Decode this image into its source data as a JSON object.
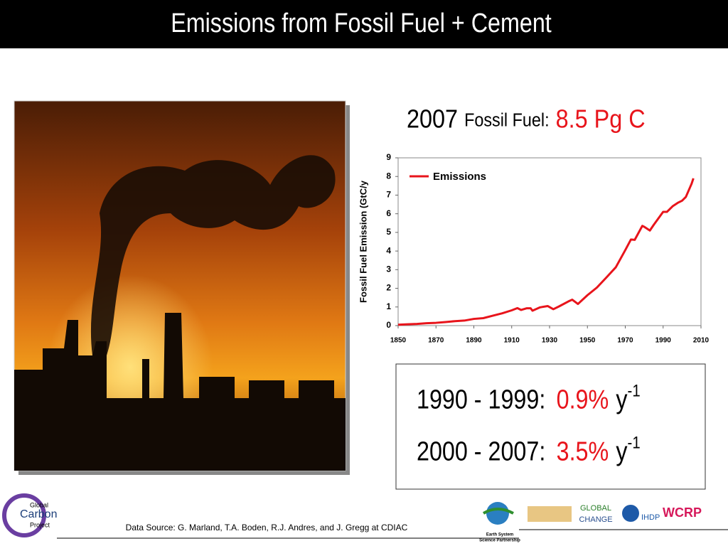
{
  "header": {
    "title": "Emissions from Fossil Fuel + Cement"
  },
  "headline": {
    "year": "2007",
    "label": "Fossil Fuel:",
    "value": "8.5 Pg C"
  },
  "chart_data": {
    "type": "line",
    "y_label": "Fossil Fuel Emission (GtC/y",
    "x": [
      1850,
      1855,
      1860,
      1865,
      1870,
      1875,
      1880,
      1885,
      1890,
      1895,
      1900,
      1905,
      1910,
      1913,
      1915,
      1918,
      1920,
      1921,
      1925,
      1929,
      1932,
      1935,
      1940,
      1942,
      1945,
      1950,
      1955,
      1960,
      1965,
      1970,
      1973,
      1975,
      1979,
      1980,
      1983,
      1985,
      1990,
      1992,
      1995,
      1998,
      2000,
      2002,
      2005,
      2006
    ],
    "series": [
      {
        "name": "Emissions",
        "color": "#e8141b",
        "values": [
          0.05,
          0.07,
          0.09,
          0.13,
          0.15,
          0.19,
          0.24,
          0.27,
          0.36,
          0.4,
          0.53,
          0.66,
          0.82,
          0.94,
          0.84,
          0.93,
          0.93,
          0.8,
          0.98,
          1.05,
          0.88,
          1.03,
          1.3,
          1.39,
          1.16,
          1.63,
          2.04,
          2.58,
          3.13,
          4.05,
          4.62,
          4.6,
          5.35,
          5.3,
          5.1,
          5.4,
          6.1,
          6.1,
          6.4,
          6.6,
          6.7,
          6.9,
          7.6,
          7.9
        ]
      }
    ],
    "xlim": [
      1850,
      2010
    ],
    "xticks": [
      1850,
      1870,
      1890,
      1910,
      1930,
      1950,
      1970,
      1990,
      2010
    ],
    "ylim": [
      0,
      9
    ],
    "yticks": [
      0,
      1,
      2,
      3,
      4,
      5,
      6,
      7,
      8,
      9
    ],
    "legend": "top-left"
  },
  "rates": [
    {
      "period": "1990 - 1999:",
      "rate": "0.9%",
      "unit": "y",
      "exponent": "-1"
    },
    {
      "period": "2000 - 2007:",
      "rate": "3.5%",
      "unit": "y",
      "exponent": "-1"
    }
  ],
  "footer": {
    "source": "Data Source: G. Marland, T.A. Boden, R.J. Andres, and J. Gregg at CDIAC",
    "logos": [
      "Global",
      "Carbon",
      "Project",
      "Earth System",
      "Science Partnership",
      "GLOBAL",
      "CHANGE",
      "IHDP",
      "WCRP"
    ]
  }
}
